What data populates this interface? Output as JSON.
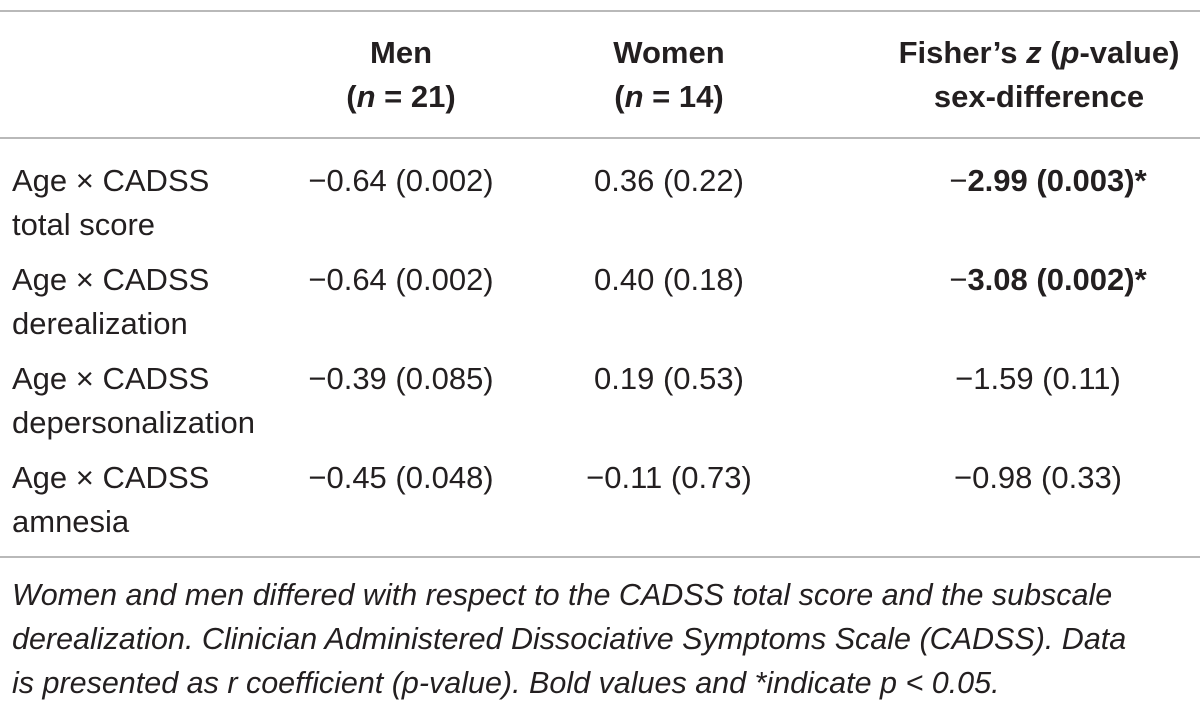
{
  "header": {
    "men_line1": "Men",
    "men_line2_pre": "(",
    "men_line2_n": "n",
    "men_line2_post": " = 21)",
    "women_line1": "Women",
    "women_line2_pre": "(",
    "women_line2_n": "n",
    "women_line2_post": " = 14)",
    "fisher_line1_a": "Fisher’s ",
    "fisher_line1_z": "z",
    "fisher_line1_b": " (",
    "fisher_line1_p": "p",
    "fisher_line1_c": "-value)",
    "fisher_line2": "sex-difference"
  },
  "rows": [
    {
      "label_line1": "Age × CADSS",
      "label_line2": "total score",
      "men": "−0.64 (0.002)",
      "women": "0.36 (0.22)",
      "fisher_sign": "−",
      "fisher_value": "2.99 (0.003)*",
      "fisher_bold": true
    },
    {
      "label_line1": "Age × CADSS",
      "label_line2": "derealization",
      "men": "−0.64 (0.002)",
      "women": "0.40 (0.18)",
      "fisher_sign": "−",
      "fisher_value": "3.08 (0.002)*",
      "fisher_bold": true
    },
    {
      "label_line1": "Age × CADSS",
      "label_line2": "depersonalization",
      "men": "−0.39 (0.085)",
      "women": "0.19 (0.53)",
      "fisher_sign": "−",
      "fisher_value": "1.59 (0.11)",
      "fisher_bold": false
    },
    {
      "label_line1": "Age × CADSS",
      "label_line2": "amnesia",
      "men": "−0.45 (0.048)",
      "women": "−0.11 (0.73)",
      "fisher_sign": "−",
      "fisher_value": "0.98 (0.33)",
      "fisher_bold": false
    }
  ],
  "footnote": {
    "line1": "Women and men differed with respect to the CADSS total score and the subscale",
    "line2": "derealization. Clinician Administered Dissociative Symptoms Scale (CADSS). Data",
    "line3": "is presented as r coefficient (p-value). Bold values and *indicate p < 0.05."
  }
}
